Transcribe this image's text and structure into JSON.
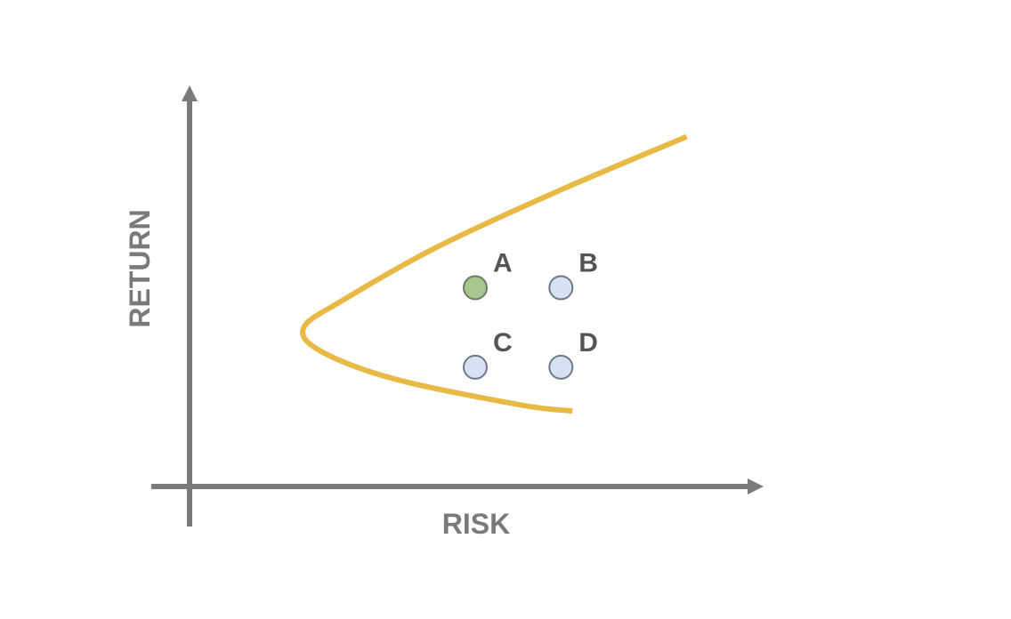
{
  "chart_data": {
    "type": "scatter",
    "title": "",
    "xlabel": "RISK",
    "ylabel": "RETURN",
    "tick_labels": false,
    "grid": false,
    "legend": "none",
    "colors": {
      "axis": "#7a7a7a",
      "frontier": "#e8b945",
      "highlight_point": "#a8c78f",
      "highlight_point_stroke": "#6e7a66",
      "point": "#d6e2f2",
      "point_stroke": "#6f7885",
      "label": "#555555"
    },
    "frontier": [
      {
        "x": 8.7,
        "y": 8.8
      },
      {
        "x": 6.4,
        "y": 7.4
      },
      {
        "x": 4.3,
        "y": 6.0
      },
      {
        "x": 2.7,
        "y": 4.7
      },
      {
        "x": 2.0,
        "y": 4.0
      },
      {
        "x": 2.3,
        "y": 3.4
      },
      {
        "x": 3.6,
        "y": 2.7
      },
      {
        "x": 5.8,
        "y": 2.05
      },
      {
        "x": 6.7,
        "y": 1.9
      }
    ],
    "points": [
      {
        "label": "A",
        "x": 5.0,
        "y": 5.0,
        "highlight": true
      },
      {
        "label": "B",
        "x": 6.5,
        "y": 5.0,
        "highlight": false
      },
      {
        "label": "C",
        "x": 5.0,
        "y": 3.0,
        "highlight": false
      },
      {
        "label": "D",
        "x": 6.5,
        "y": 3.0,
        "highlight": false
      }
    ]
  }
}
